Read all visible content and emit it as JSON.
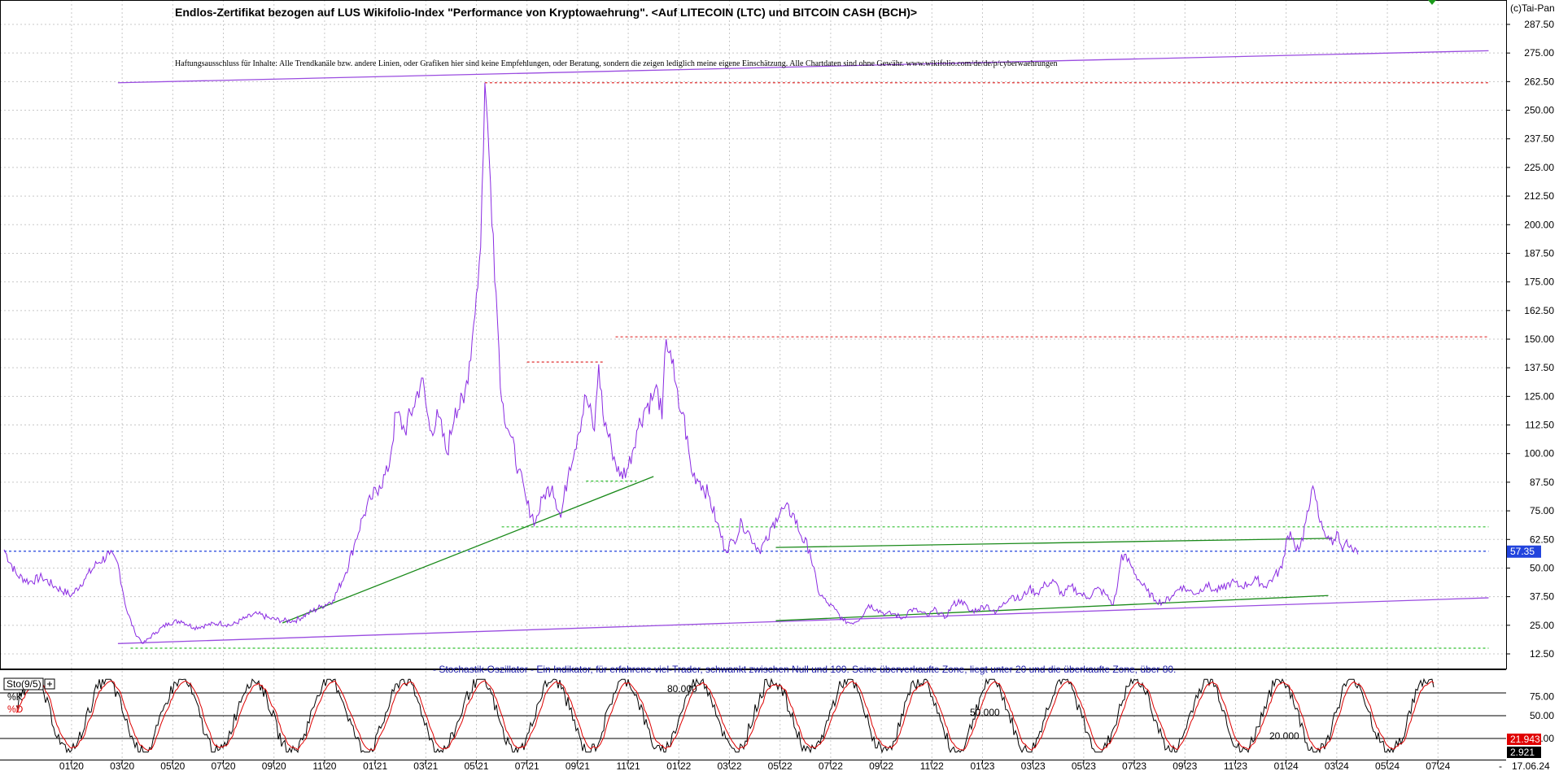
{
  "header": {
    "title": "Endlos-Zertifikat bezogen auf LUS Wikifolio-Index \"Performance von Kryptowaehrung\". <Auf LITECOIN (LTC) und BITCOIN CASH (BCH)>",
    "disclaimer": "Haftungsausschluss für Inhalte: Alle Trendkanäle bzw. andere Linien, oder Grafiken hier sind keine Empfehlungen, oder Beratung, sondern die zeigen lediglich meine eigene Einschätzung. Alle Chartdaten sind ohne Gewähr. www.wikifolio.com/de/de/p/cyberwaehrungen",
    "copyright": "(c)Tai-Pan"
  },
  "indicator": {
    "note": "- Stochastik-Oszillator - Ein Indikator, für erfahrene viel-Trader, schwankt zwischen Null und 100. Seine überverkaufte Zone, liegt unter 20 und die überkaufte Zone, über 80.",
    "label": "Sto(9/5)",
    "k_label": "%K",
    "d_label": "%D",
    "level_80": "80.000",
    "level_50": "50.000",
    "level_20": "20.000",
    "k_value": "21.943",
    "d_value": "2.921"
  },
  "chart_data": [
    {
      "type": "line",
      "series": [
        {
          "name": "",
          "color": "#8a2be2",
          "points": [
            [
              0,
              58
            ],
            [
              3,
              47
            ],
            [
              6,
              44
            ],
            [
              9,
              46
            ],
            [
              12,
              42
            ],
            [
              16,
              38
            ],
            [
              19,
              45
            ],
            [
              22,
              52
            ],
            [
              25,
              56
            ],
            [
              27,
              52
            ],
            [
              29,
              32
            ],
            [
              31,
              22
            ],
            [
              33,
              17
            ],
            [
              36,
              22
            ],
            [
              39,
              26
            ],
            [
              42,
              27
            ],
            [
              45,
              24
            ],
            [
              48,
              25
            ],
            [
              51,
              26
            ],
            [
              54,
              25
            ],
            [
              57,
              28
            ],
            [
              60,
              30
            ],
            [
              63,
              28
            ],
            [
              66,
              27
            ],
            [
              69,
              27
            ],
            [
              72,
              30
            ],
            [
              75,
              33
            ],
            [
              78,
              36
            ],
            [
              81,
              48
            ],
            [
              83,
              60
            ],
            [
              85,
              72
            ],
            [
              87,
              80
            ],
            [
              89,
              86
            ],
            [
              91,
              92
            ],
            [
              93,
              118
            ],
            [
              95,
              110
            ],
            [
              97,
              120
            ],
            [
              99,
              133
            ],
            [
              101,
              110
            ],
            [
              103,
              116
            ],
            [
              105,
              100
            ],
            [
              107,
              120
            ],
            [
              109,
              122
            ],
            [
              111,
              150
            ],
            [
              112,
              170
            ],
            [
              113,
              190
            ],
            [
              114,
              262
            ],
            [
              115,
              230
            ],
            [
              116,
              196
            ],
            [
              117,
              158
            ],
            [
              118,
              123
            ],
            [
              120,
              108
            ],
            [
              122,
              93
            ],
            [
              124,
              78
            ],
            [
              126,
              70
            ],
            [
              128,
              82
            ],
            [
              130,
              86
            ],
            [
              132,
              72
            ],
            [
              134,
              94
            ],
            [
              136,
              108
            ],
            [
              138,
              125
            ],
            [
              140,
              110
            ],
            [
              141,
              139
            ],
            [
              142,
              117
            ],
            [
              144,
              103
            ],
            [
              146,
              90
            ],
            [
              148,
              94
            ],
            [
              150,
              110
            ],
            [
              152,
              120
            ],
            [
              154,
              125
            ],
            [
              155,
              128
            ],
            [
              156,
              115
            ],
            [
              157,
              150
            ],
            [
              158,
              145
            ],
            [
              159,
              132
            ],
            [
              160,
              120
            ],
            [
              161,
              118
            ],
            [
              163,
              92
            ],
            [
              165,
              88
            ],
            [
              167,
              82
            ],
            [
              169,
              70
            ],
            [
              171,
              58
            ],
            [
              173,
              62
            ],
            [
              175,
              70
            ],
            [
              177,
              64
            ],
            [
              179,
              58
            ],
            [
              181,
              62
            ],
            [
              183,
              72
            ],
            [
              185,
              76
            ],
            [
              187,
              74
            ],
            [
              189,
              64
            ],
            [
              191,
              58
            ],
            [
              193,
              40
            ],
            [
              195,
              35
            ],
            [
              197,
              32
            ],
            [
              199,
              27
            ],
            [
              201,
              26
            ],
            [
              203,
              28
            ],
            [
              205,
              34
            ],
            [
              207,
              32
            ],
            [
              209,
              30
            ],
            [
              211,
              30
            ],
            [
              213,
              28
            ],
            [
              215,
              32
            ],
            [
              217,
              31
            ],
            [
              219,
              29
            ],
            [
              221,
              32
            ],
            [
              223,
              28
            ],
            [
              225,
              34
            ],
            [
              227,
              36
            ],
            [
              229,
              31
            ],
            [
              231,
              32
            ],
            [
              233,
              34
            ],
            [
              235,
              30
            ],
            [
              237,
              35
            ],
            [
              239,
              38
            ],
            [
              241,
              36
            ],
            [
              243,
              41
            ],
            [
              245,
              39
            ],
            [
              247,
              43
            ],
            [
              249,
              44
            ],
            [
              251,
              38
            ],
            [
              253,
              42
            ],
            [
              255,
              39
            ],
            [
              257,
              37
            ],
            [
              259,
              41
            ],
            [
              261,
              39
            ],
            [
              263,
              34
            ],
            [
              264,
              42
            ],
            [
              265,
              56
            ],
            [
              267,
              52
            ],
            [
              269,
              45
            ],
            [
              271,
              40
            ],
            [
              273,
              36
            ],
            [
              275,
              35
            ],
            [
              277,
              38
            ],
            [
              279,
              42
            ],
            [
              281,
              40
            ],
            [
              283,
              39
            ],
            [
              285,
              43
            ],
            [
              287,
              40
            ],
            [
              289,
              41
            ],
            [
              291,
              44
            ],
            [
              293,
              42
            ],
            [
              295,
              43
            ],
            [
              297,
              45
            ],
            [
              299,
              42
            ],
            [
              301,
              46
            ],
            [
              303,
              50
            ],
            [
              304,
              62
            ],
            [
              305,
              66
            ],
            [
              306,
              60
            ],
            [
              307,
              58
            ],
            [
              308,
              62
            ],
            [
              309,
              75
            ],
            [
              310,
              84
            ],
            [
              311,
              80
            ],
            [
              312,
              70
            ],
            [
              313,
              66
            ],
            [
              314,
              64
            ],
            [
              315,
              60
            ],
            [
              316,
              66
            ],
            [
              317,
              60
            ],
            [
              318,
              61
            ],
            [
              319,
              59
            ],
            [
              320,
              57
            ],
            [
              321,
              56
            ]
          ]
        }
      ],
      "x_ticks": [
        "01\\20",
        "03\\20",
        "05\\20",
        "07\\20",
        "09\\20",
        "11\\20",
        "01\\21",
        "03\\21",
        "05\\21",
        "07\\21",
        "09\\21",
        "11\\21",
        "01\\22",
        "03\\22",
        "05\\22",
        "07\\22",
        "09\\22",
        "11\\22",
        "01\\23",
        "03\\23",
        "05\\23",
        "07\\23",
        "09\\23",
        "11\\23",
        "01\\24",
        "03\\24",
        "05\\24",
        "07\\24"
      ],
      "x_tick_positions": [
        16,
        28,
        40,
        52,
        64,
        76,
        88,
        100,
        112,
        124,
        136,
        148,
        160,
        172,
        184,
        196,
        208,
        220,
        232,
        244,
        256,
        268,
        280,
        292,
        304,
        316,
        328,
        340
      ],
      "y_ticks": [
        12.5,
        25,
        37.5,
        50,
        62.5,
        75,
        87.5,
        100,
        112.5,
        125,
        137.5,
        150,
        162.5,
        175,
        187.5,
        200,
        212.5,
        225,
        237.5,
        250,
        262.5,
        275,
        287.5
      ],
      "ylim": [
        5,
        300
      ],
      "xlim": [
        0,
        355
      ],
      "last_value": "57.35",
      "last_date": "17.06.24",
      "trend_lines": [
        {
          "color": "#9a4ce0",
          "from": [
            27,
            262
          ],
          "to": [
            352,
            276
          ]
        },
        {
          "color": "#9a4ce0",
          "from": [
            27,
            17
          ],
          "to": [
            352,
            37
          ]
        },
        {
          "color": "#1a8a1a",
          "from": [
            66,
            26
          ],
          "to": [
            154,
            90
          ]
        },
        {
          "color": "#1a8a1a",
          "from": [
            183,
            59
          ],
          "to": [
            315,
            63
          ]
        },
        {
          "color": "#1a8a1a",
          "from": [
            183,
            27
          ],
          "to": [
            314,
            38
          ]
        }
      ],
      "dotted_lines": [
        {
          "color": "#e03030",
          "from": [
            114,
            262
          ],
          "to": [
            352,
            262
          ]
        },
        {
          "color": "#e03030",
          "from": [
            124,
            140
          ],
          "to": [
            142,
            140
          ]
        },
        {
          "color": "#e03030",
          "from": [
            145,
            151
          ],
          "to": [
            352,
            151
          ]
        },
        {
          "color": "#30c030",
          "from": [
            118,
            68
          ],
          "to": [
            352,
            68
          ]
        },
        {
          "color": "#30c030",
          "from": [
            138,
            88
          ],
          "to": [
            150,
            88
          ]
        },
        {
          "color": "#30c030",
          "from": [
            30,
            15
          ],
          "to": [
            352,
            15
          ]
        },
        {
          "color": "#2244dd",
          "from": [
            0,
            57.35
          ],
          "to": [
            352,
            57.35
          ]
        }
      ]
    },
    {
      "type": "line",
      "series": [
        {
          "name": "%K",
          "color": "#000000"
        },
        {
          "name": "%D",
          "color": "#dd0000"
        }
      ],
      "y_ticks": [
        20,
        50,
        75
      ],
      "ylim": [
        0,
        100
      ],
      "levels": [
        20,
        50,
        80
      ],
      "last_k": 21.943,
      "last_d": 2.921
    }
  ]
}
